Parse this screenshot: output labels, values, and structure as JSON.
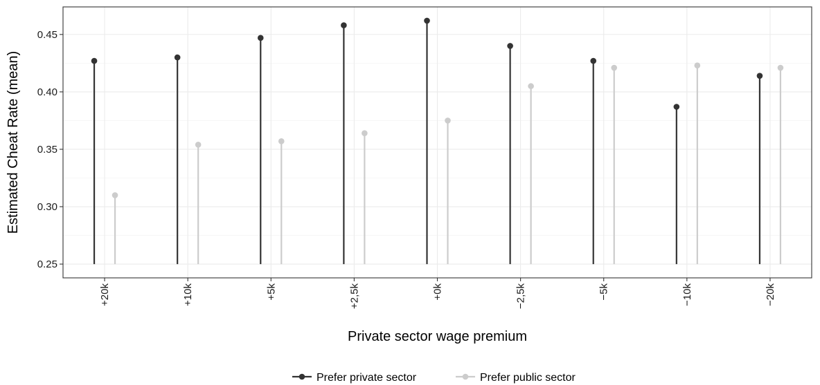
{
  "chart_data": {
    "type": "lollipop",
    "xlabel": "Private sector wage premium",
    "ylabel": "Estimated Cheat Rate (mean)",
    "categories": [
      "+20k",
      "+10k",
      "+5k",
      "+2,5k",
      "+0k",
      "−2,5k",
      "−5k",
      "−10k",
      "−20k"
    ],
    "ylim": [
      0.238,
      0.474
    ],
    "baseline": 0.25,
    "yticks": [
      0.25,
      0.3,
      0.35,
      0.4,
      0.45
    ],
    "ytick_labels": [
      "0.25",
      "0.30",
      "0.35",
      "0.40",
      "0.45"
    ],
    "grid": true,
    "legend_position": "bottom",
    "series": [
      {
        "name": "Prefer private sector",
        "color": "#333333",
        "values": [
          0.427,
          0.43,
          0.447,
          0.458,
          0.462,
          0.44,
          0.427,
          0.387,
          0.414
        ]
      },
      {
        "name": "Prefer public sector",
        "color": "#cccccc",
        "values": [
          0.31,
          0.354,
          0.357,
          0.364,
          0.375,
          0.405,
          0.421,
          0.423,
          0.421
        ]
      }
    ]
  }
}
